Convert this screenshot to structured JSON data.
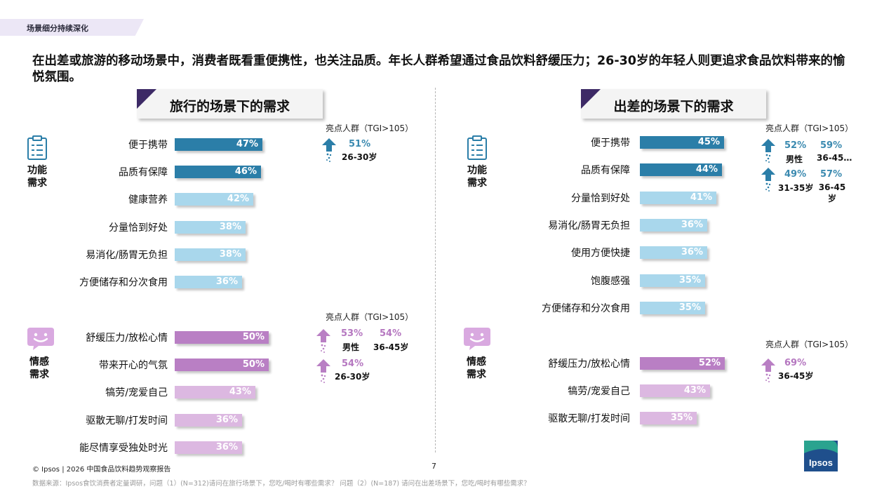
{
  "tag": "场景细分持续深化",
  "headline": "在出差或旅游的移动场景中，消费者既看重便携性，也关注品质。年长人群希望通过食品饮料舒缓压力；26-30岁的年轻人则更追求食品饮料带来的愉悦氛围。",
  "colors": {
    "func_dark": "#2b7ea8",
    "func_light": "#a9d7ec",
    "emo_dark": "#b97fc4",
    "emo_light": "#dcb8e1",
    "teal_text": "#3b8ab0",
    "purple_text": "#b577c0"
  },
  "left_panel": {
    "title": "旅行的场景下的需求",
    "func_section_label": [
      "功能",
      "需求"
    ],
    "emo_section_label": [
      "情感",
      "需求"
    ],
    "func_icon": "clipboard-icon",
    "emo_icon": "smile-chat-icon",
    "func_highlight": {
      "title": "亮点人群（TGI>105）",
      "items": [
        {
          "pct": "51%",
          "group": "26-30岁"
        }
      ]
    },
    "emo_highlight": {
      "title": "亮点人群（TGI>105）",
      "items": [
        {
          "pct": "53%",
          "group": "男性"
        },
        {
          "pct": "54%",
          "group": "36-45岁"
        },
        {
          "pct": "54%",
          "group": "26-30岁"
        }
      ]
    }
  },
  "right_panel": {
    "title": "出差的场景下的需求",
    "func_section_label": [
      "功能",
      "需求"
    ],
    "emo_section_label": [
      "情感",
      "需求"
    ],
    "func_highlight": {
      "title": "亮点人群（TGI>105）",
      "items": [
        {
          "pct": "52%",
          "group": "男性"
        },
        {
          "pct": "59%",
          "group": "36-45…"
        },
        {
          "pct": "49%",
          "group": "31-35岁"
        },
        {
          "pct": "57%",
          "group": "36-45岁"
        }
      ]
    },
    "emo_highlight": {
      "title": "亮点人群（TGI>105）",
      "items": [
        {
          "pct": "69%",
          "group": "36-45岁"
        }
      ]
    }
  },
  "chart_data": [
    {
      "type": "bar",
      "orientation": "horizontal",
      "panel": "旅行的场景下的需求",
      "group": "功能需求",
      "categories": [
        "便于携带",
        "品质有保障",
        "健康营养",
        "分量恰到好处",
        "易消化/肠胃无负担",
        "方便储存和分次食用"
      ],
      "values": [
        47,
        46,
        42,
        38,
        38,
        36
      ],
      "labels": [
        "47%",
        "46%",
        "42%",
        "38%",
        "38%",
        "36%"
      ]
    },
    {
      "type": "bar",
      "orientation": "horizontal",
      "panel": "旅行的场景下的需求",
      "group": "情感需求",
      "categories": [
        "舒缓压力/放松心情",
        "带来开心的气氛",
        "犒劳/宠爱自己",
        "驱散无聊/打发时间",
        "能尽情享受独处时光"
      ],
      "values": [
        50,
        50,
        43,
        36,
        36
      ],
      "labels": [
        "50%",
        "50%",
        "43%",
        "36%",
        "36%"
      ]
    },
    {
      "type": "bar",
      "orientation": "horizontal",
      "panel": "出差的场景下的需求",
      "group": "功能需求",
      "categories": [
        "便于携带",
        "品质有保障",
        "分量恰到好处",
        "易消化/肠胃无负担",
        "使用方便快捷",
        "饱腹感强",
        "方便储存和分次食用"
      ],
      "values": [
        45,
        44,
        41,
        36,
        36,
        35,
        35
      ],
      "labels": [
        "45%",
        "44%",
        "41%",
        "36%",
        "36%",
        "35%",
        "35%"
      ]
    },
    {
      "type": "bar",
      "orientation": "horizontal",
      "panel": "出差的场景下的需求",
      "group": "情感需求",
      "categories": [
        "舒缓压力/放松心情",
        "犒劳/宠爱自己",
        "驱散无聊/打发时间"
      ],
      "values": [
        52,
        43,
        35
      ],
      "labels": [
        "52%",
        "43%",
        "35%"
      ]
    }
  ],
  "footer": "© Ipsos | 2026 中国食品饮料趋势观察报告",
  "page_number": "7",
  "source": "数据来源：Ipsos食饮消费者定量调研，问题（1）(N=312)请问在旅行场景下，您吃/喝时有哪些需求？ 问题（2）(N=187) 请问在出差场景下，您吃/喝时有哪些需求？",
  "logo_text": "Ipsos"
}
